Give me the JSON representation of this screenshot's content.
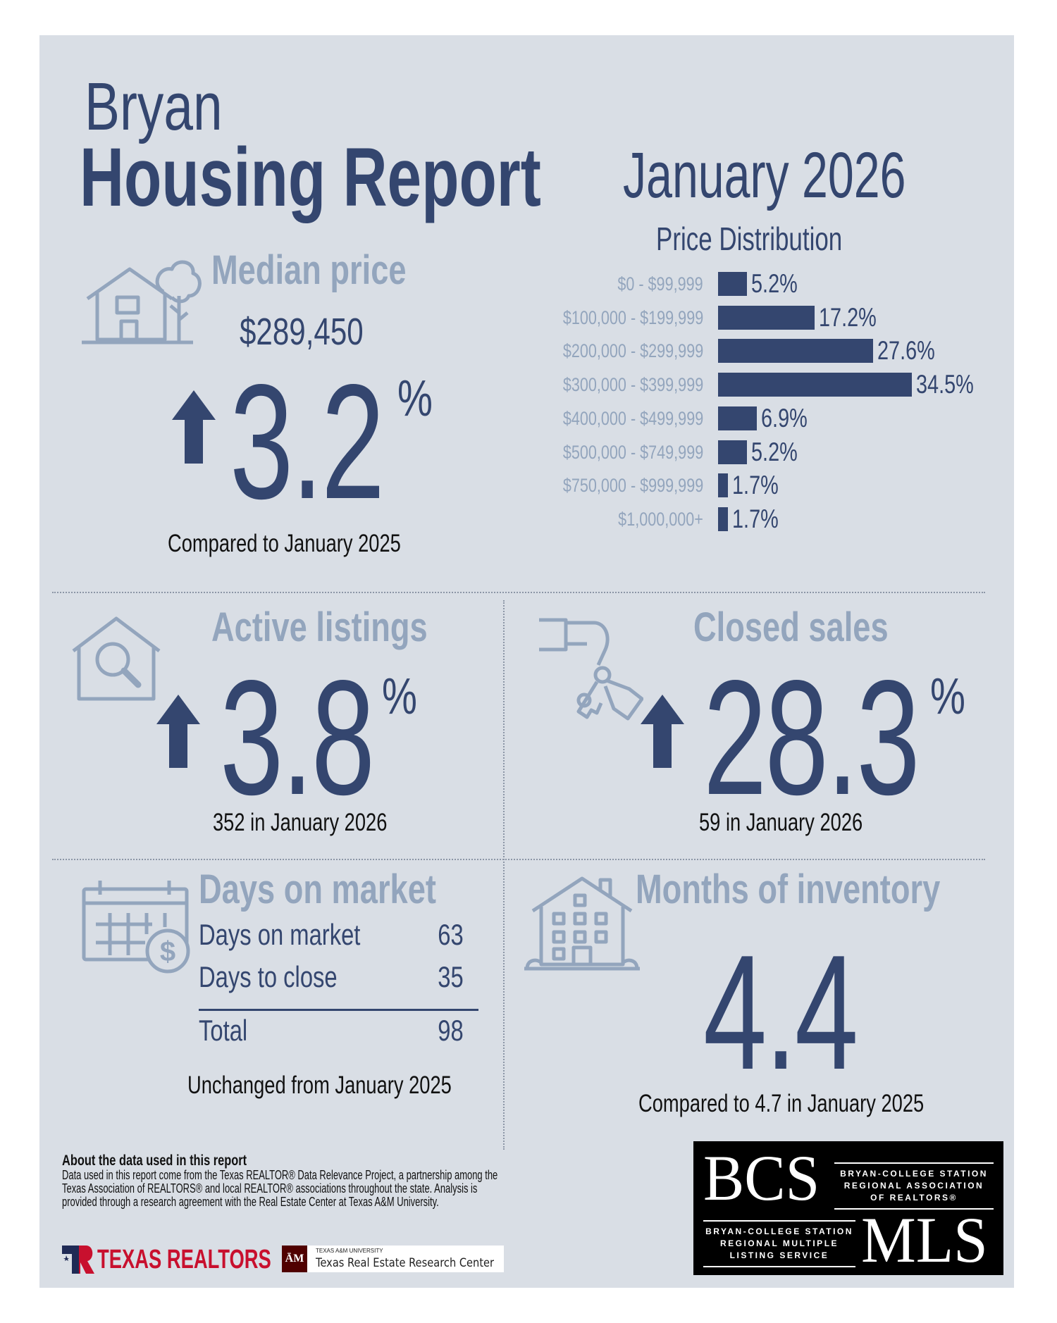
{
  "header": {
    "city": "Bryan",
    "title": "Housing Report",
    "period": "January 2026"
  },
  "median_price": {
    "title": "Median price",
    "value": "$289,450",
    "change": "3.2",
    "percent_sign": "%",
    "direction": "up",
    "comparison": "Compared to January 2025",
    "icon": "house-tree-icon"
  },
  "chart_data": {
    "type": "bar",
    "orientation": "horizontal",
    "title": "Price Distribution",
    "categories": [
      "$0 - $99,999",
      "$100,000 - $199,999",
      "$200,000 - $299,999",
      "$300,000 - $399,999",
      "$400,000 - $499,999",
      "$500,000 - $749,999",
      "$750,000 - $999,999",
      "$1,000,000+"
    ],
    "values": [
      5.2,
      17.2,
      27.6,
      34.5,
      6.9,
      5.2,
      1.7,
      1.7
    ],
    "value_labels": [
      "5.2%",
      "17.2%",
      "27.6%",
      "34.5%",
      "6.9%",
      "5.2%",
      "1.7%",
      "1.7%"
    ],
    "unit": "%",
    "grid": false,
    "bar_color": "#34466f"
  },
  "active_listings": {
    "title": "Active listings",
    "change": "3.8",
    "percent_sign": "%",
    "direction": "up",
    "detail": "352 in January 2026",
    "icon": "house-magnifier-icon"
  },
  "closed_sales": {
    "title": "Closed sales",
    "change": "28.3",
    "percent_sign": "%",
    "direction": "up",
    "detail": "59 in January 2026",
    "icon": "hand-keys-icon"
  },
  "days_on_market": {
    "title": "Days on market",
    "rows": [
      {
        "label": "Days on market",
        "value": "63"
      },
      {
        "label": "Days to close",
        "value": "35"
      }
    ],
    "total_label": "Total",
    "total_value": "98",
    "comparison": "Unchanged from January 2025",
    "icon": "calendar-dollar-icon"
  },
  "months_inventory": {
    "title": "Months of inventory",
    "value": "4.4",
    "comparison": "Compared to 4.7 in January 2025",
    "icon": "building-icon"
  },
  "footer": {
    "heading": "About the data used in this report",
    "body": "Data used in this report come from the Texas REALTOR® Data Relevance Project, a partnership among the Texas Association of REALTORS® and local REALTOR® associations throughout the state. Analysis is provided through a research agreement with the Real Estate Center at Texas A&M University.",
    "texas_realtors_logo": "TEXAS REALTORS",
    "tamu_small": "TEXAS A&M UNIVERSITY",
    "tamu_name": "Texas Real Estate Research Center",
    "bcs_logo": {
      "bcs": "BCS",
      "association": [
        "BRYAN-COLLEGE STATION",
        "REGIONAL ASSOCIATION",
        "OF REALTORS®"
      ],
      "mls_text": [
        "BRYAN-COLLEGE STATION",
        "REGIONAL MULTIPLE",
        "LISTING SERVICE"
      ],
      "mls": "MLS"
    }
  },
  "colors": {
    "background": "#d9dee5",
    "navy": "#34466f",
    "steel": "#93a5bd",
    "texas_red": "#c8102e",
    "tamu_maroon": "#500000"
  }
}
